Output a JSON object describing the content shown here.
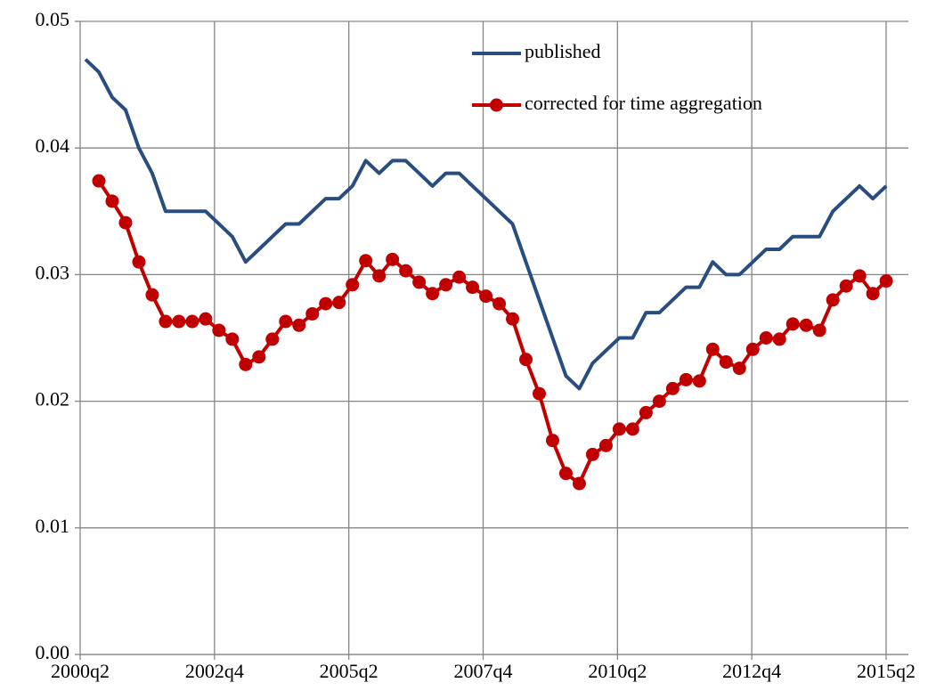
{
  "chart_data": {
    "type": "line",
    "categories": [
      "2000q2",
      null,
      null,
      null,
      null,
      null,
      null,
      null,
      null,
      null,
      "2002q4",
      null,
      null,
      null,
      null,
      null,
      null,
      null,
      null,
      null,
      "2005q2",
      null,
      null,
      null,
      null,
      null,
      null,
      null,
      null,
      null,
      "2007q4",
      null,
      null,
      null,
      null,
      null,
      null,
      null,
      null,
      null,
      "2010q2",
      null,
      null,
      null,
      null,
      null,
      null,
      null,
      null,
      null,
      "2012q4",
      null,
      null,
      null,
      null,
      null,
      null,
      null,
      null,
      null,
      "2015q2"
    ],
    "series": [
      {
        "name": "published",
        "color": "#2a4d80",
        "marker": false,
        "values": [
          0.047,
          0.046,
          0.044,
          0.043,
          0.04,
          0.038,
          0.035,
          0.035,
          0.035,
          0.035,
          0.034,
          0.033,
          0.031,
          0.032,
          0.033,
          0.034,
          0.034,
          0.035,
          0.036,
          0.036,
          0.037,
          0.039,
          0.038,
          0.039,
          0.039,
          0.038,
          0.037,
          0.038,
          0.038,
          0.037,
          0.036,
          0.035,
          0.034,
          0.031,
          0.028,
          0.025,
          0.022,
          0.021,
          0.023,
          0.024,
          0.025,
          0.025,
          0.027,
          0.027,
          0.028,
          0.029,
          0.029,
          0.031,
          0.03,
          0.03,
          0.031,
          0.032,
          0.032,
          0.033,
          0.033,
          0.033,
          0.035,
          0.036,
          0.037,
          0.036,
          0.037
        ]
      },
      {
        "name": "corrected for time aggregation",
        "color": "#c00000",
        "marker": true,
        "values": [
          null,
          0.0374,
          0.0358,
          0.0341,
          0.031,
          0.0284,
          0.0263,
          0.0263,
          0.0263,
          0.0265,
          0.0256,
          0.0249,
          0.0229,
          0.0235,
          0.0249,
          0.0263,
          0.026,
          0.0269,
          0.0277,
          0.0278,
          0.0292,
          0.0311,
          0.0299,
          0.0312,
          0.0303,
          0.0294,
          0.0285,
          0.0292,
          0.0298,
          0.029,
          0.0283,
          0.0277,
          0.0265,
          0.0233,
          0.0206,
          0.0169,
          0.0143,
          0.0135,
          0.0158,
          0.0165,
          0.0178,
          0.0178,
          0.0191,
          0.02,
          0.021,
          0.0217,
          0.0216,
          0.0241,
          0.0231,
          0.0226,
          0.0241,
          0.025,
          0.0249,
          0.0261,
          0.026,
          0.0256,
          0.028,
          0.0291,
          0.0299,
          0.0285,
          0.0295
        ]
      }
    ],
    "ylim": [
      0,
      0.05
    ],
    "yticks": [
      {
        "value": 0,
        "label": "0.00"
      },
      0.01,
      0.02,
      0.03,
      0.04,
      0.05
    ],
    "grid": true,
    "legend": "top"
  }
}
